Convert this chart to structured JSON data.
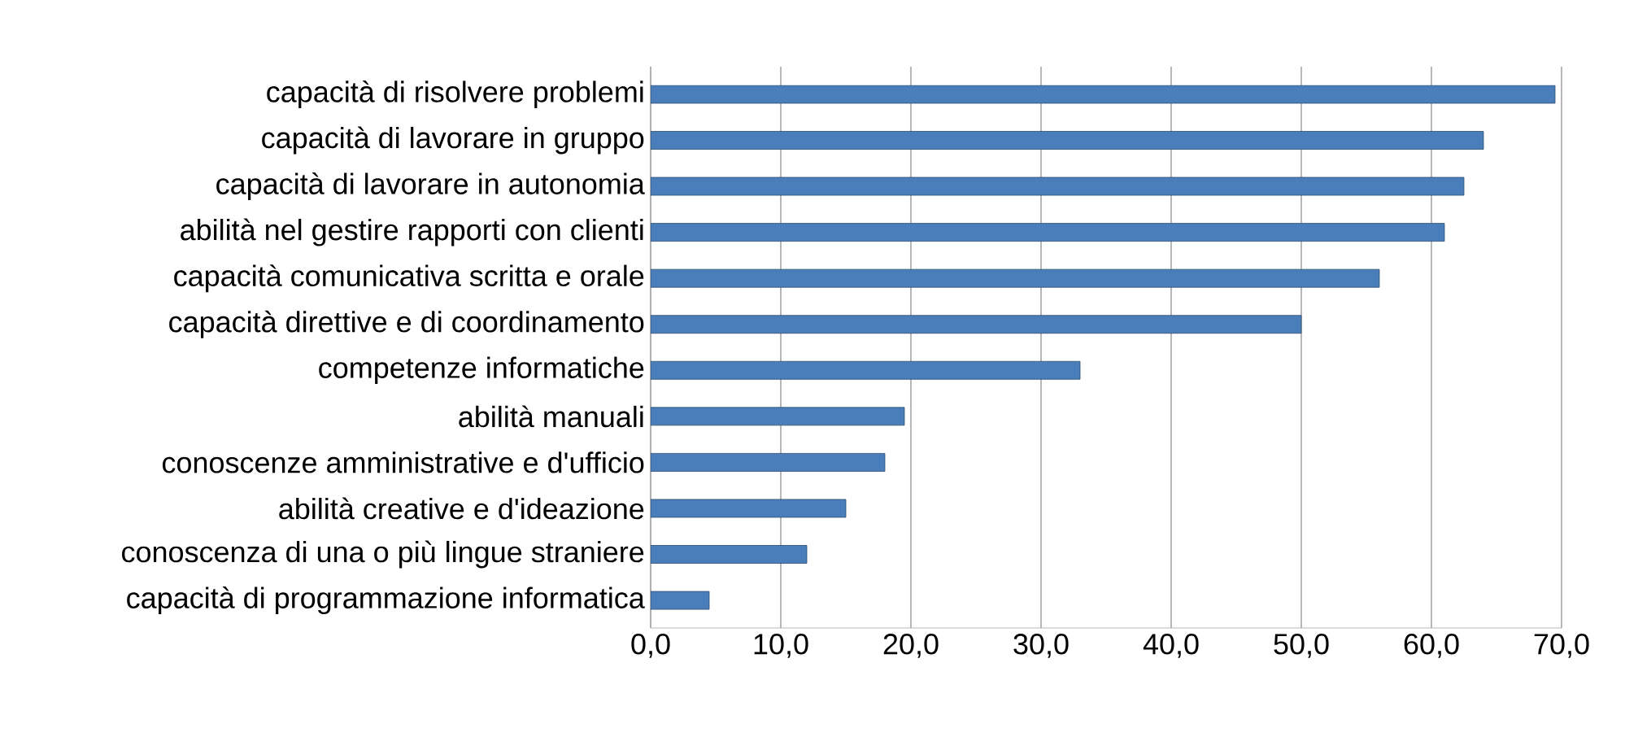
{
  "chart_data": {
    "type": "bar",
    "orientation": "horizontal",
    "categories": [
      "capacità di risolvere problemi",
      "capacità di lavorare in gruppo",
      "capacità di lavorare in autonomia",
      "abilità nel gestire rapporti con clienti",
      "capacità comunicativa scritta e orale",
      "capacità direttive e di coordinamento",
      "competenze informatiche",
      "abilità manuali",
      "conoscenze amministrative e d'ufficio",
      "abilità creative e d'ideazione",
      "conoscenza di una o più lingue straniere",
      "capacità di programmazione informatica"
    ],
    "values": [
      69.5,
      64,
      62.5,
      61,
      56,
      50,
      33,
      19.5,
      18,
      15,
      12,
      4.5
    ],
    "color": "#4a7ebb",
    "xlim": [
      0,
      70
    ],
    "xticks": [
      {
        "value": 0,
        "label": "0,0"
      },
      {
        "value": 10,
        "label": "10,0"
      },
      {
        "value": 20,
        "label": "20,0"
      },
      {
        "value": 30,
        "label": "30,0"
      },
      {
        "value": 40,
        "label": "40,0"
      },
      {
        "value": 50,
        "label": "50,0"
      },
      {
        "value": 60,
        "label": "60,0"
      },
      {
        "value": 70,
        "label": "70,0"
      }
    ],
    "grid": "x"
  }
}
